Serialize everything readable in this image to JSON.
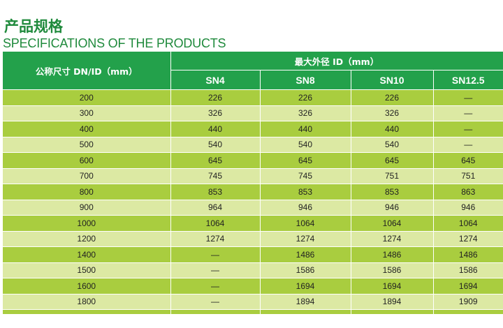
{
  "title_cn": "产品规格",
  "title_en": "SPECIFICATIONS OF THE PRODUCTS",
  "table": {
    "size_header": "公称尺寸 DN/ID（mm）",
    "od_header": "最大外径 ID（mm）",
    "sn_headers": [
      "SN4",
      "SN8",
      "SN10",
      "SN12.5"
    ],
    "rows": [
      [
        "200",
        "226",
        "226",
        "226",
        "—"
      ],
      [
        "300",
        "326",
        "326",
        "326",
        "—"
      ],
      [
        "400",
        "440",
        "440",
        "440",
        "—"
      ],
      [
        "500",
        "540",
        "540",
        "540",
        "—"
      ],
      [
        "600",
        "645",
        "645",
        "645",
        "645"
      ],
      [
        "700",
        "745",
        "745",
        "751",
        "751"
      ],
      [
        "800",
        "853",
        "853",
        "853",
        "863"
      ],
      [
        "900",
        "964",
        "946",
        "946",
        "946"
      ],
      [
        "1000",
        "1064",
        "1064",
        "1064",
        "1064"
      ],
      [
        "1200",
        "1274",
        "1274",
        "1274",
        "1274"
      ],
      [
        "1400",
        "—",
        "1486",
        "1486",
        "1486"
      ],
      [
        "1500",
        "—",
        "1586",
        "1586",
        "1586"
      ],
      [
        "1600",
        "—",
        "1694",
        "1694",
        "1694"
      ],
      [
        "1800",
        "—",
        "1894",
        "1894",
        "1909"
      ]
    ]
  }
}
